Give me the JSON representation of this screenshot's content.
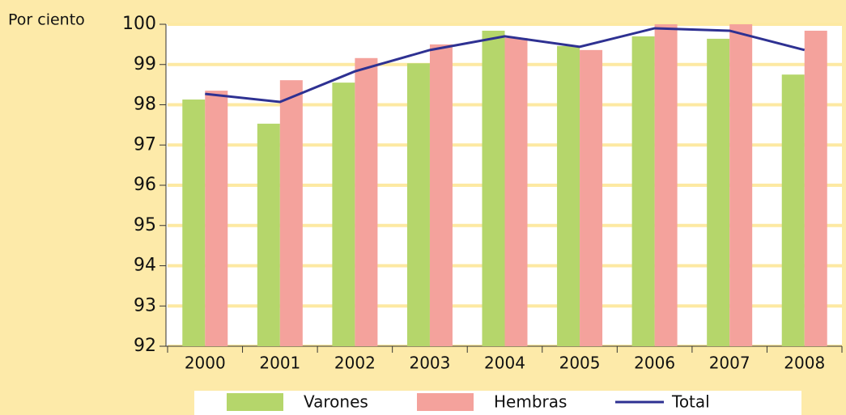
{
  "chart_data": {
    "type": "bar",
    "y_axis_label": "Por ciento",
    "categories": [
      "2000",
      "2001",
      "2002",
      "2003",
      "2004",
      "2005",
      "2006",
      "2007",
      "2008"
    ],
    "series": [
      {
        "name": "Varones",
        "type": "bar",
        "color": "#b5d66b",
        "values": [
          98.13,
          97.53,
          98.55,
          99.03,
          99.84,
          99.46,
          99.7,
          99.64,
          98.75
        ]
      },
      {
        "name": "Hembras",
        "type": "bar",
        "color": "#f4a29c",
        "values": [
          98.35,
          98.61,
          99.16,
          99.5,
          99.66,
          99.36,
          100,
          100,
          99.84
        ]
      },
      {
        "name": "Total",
        "type": "line",
        "color": "#2e3192",
        "values": [
          98.27,
          98.07,
          98.83,
          99.36,
          99.7,
          99.44,
          99.9,
          99.84,
          99.36
        ]
      }
    ],
    "ylim": [
      92,
      100
    ],
    "yticks": [
      92,
      93,
      94,
      95,
      96,
      97,
      98,
      99,
      100
    ],
    "grid": true
  }
}
